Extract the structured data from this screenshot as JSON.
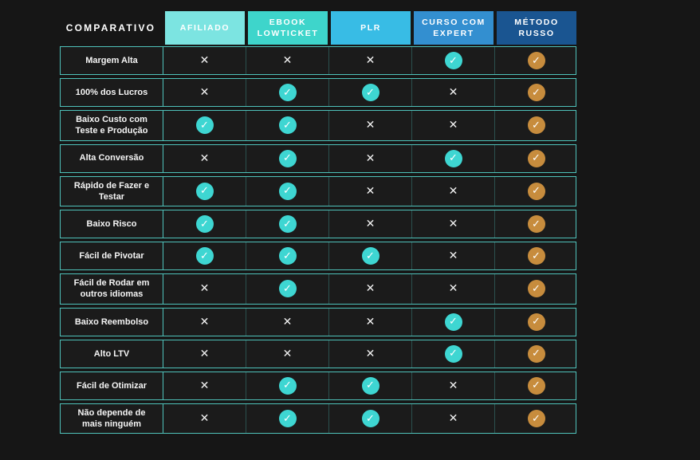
{
  "colors": {
    "background": "#161616",
    "row_background": "#1B1B1B",
    "border_teal": "#4FC2BA",
    "border_teal_dim": "rgba(79,194,186,0.32)",
    "check_teal": "#3ED6D2",
    "check_gold": "#C78C3D",
    "header_text": "#FFFFFF",
    "cross_color": "#F2F2F2"
  },
  "icons": {
    "check": "✓",
    "cross": "✕"
  },
  "chart_data": {
    "type": "table",
    "corner_label": "COMPARATIVO",
    "columns": [
      {
        "id": "afiliado",
        "label": "AFILIADO",
        "header_color": "#7CE4E1",
        "check_color": "#3ED6D2"
      },
      {
        "id": "ebook-lowticket",
        "label": "EBOOK LOWTICKET",
        "header_color": "#3ED5CB",
        "check_color": "#3ED6D2"
      },
      {
        "id": "plr",
        "label": "PLR",
        "header_color": "#38BCE5",
        "check_color": "#3ED6D2"
      },
      {
        "id": "curso-com-expert",
        "label": "CURSO COM EXPERT",
        "header_color": "#338FD0",
        "check_color": "#3ED6D2"
      },
      {
        "id": "metodo-russo",
        "label": "MÉTODO RUSSO",
        "header_color": "#1A5591",
        "check_color": "#C78C3D"
      }
    ],
    "rows": [
      {
        "label": "Margem Alta",
        "cells": [
          "cross",
          "cross",
          "cross",
          "check",
          "check"
        ]
      },
      {
        "label": "100% dos Lucros",
        "cells": [
          "cross",
          "check",
          "check",
          "cross",
          "check"
        ]
      },
      {
        "label": "Baixo Custo com Teste e Produção",
        "cells": [
          "check",
          "check",
          "cross",
          "cross",
          "check"
        ]
      },
      {
        "label": "Alta Conversão",
        "cells": [
          "cross",
          "check",
          "cross",
          "check",
          "check"
        ]
      },
      {
        "label": "Rápido de Fazer e Testar",
        "cells": [
          "check",
          "check",
          "cross",
          "cross",
          "check"
        ]
      },
      {
        "label": "Baixo Risco",
        "cells": [
          "check",
          "check",
          "cross",
          "cross",
          "check"
        ]
      },
      {
        "label": "Fácil de Pivotar",
        "cells": [
          "check",
          "check",
          "check",
          "cross",
          "check"
        ]
      },
      {
        "label": "Fácil de Rodar em outros idiomas",
        "cells": [
          "cross",
          "check",
          "cross",
          "cross",
          "check"
        ]
      },
      {
        "label": "Baixo Reembolso",
        "cells": [
          "cross",
          "cross",
          "cross",
          "check",
          "check"
        ]
      },
      {
        "label": "Alto LTV",
        "cells": [
          "cross",
          "cross",
          "cross",
          "check",
          "check"
        ]
      },
      {
        "label": "Fácil de Otimizar",
        "cells": [
          "cross",
          "check",
          "check",
          "cross",
          "check"
        ]
      },
      {
        "label": "Não depende de mais ninguém",
        "cells": [
          "cross",
          "check",
          "check",
          "cross",
          "check"
        ]
      }
    ]
  }
}
